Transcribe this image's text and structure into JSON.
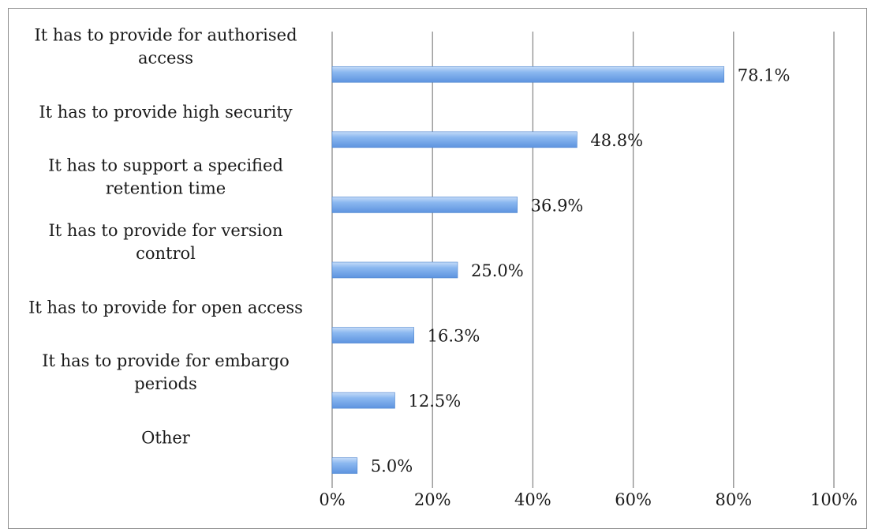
{
  "chart_data": {
    "type": "bar",
    "orientation": "horizontal",
    "title": "",
    "xlabel": "",
    "ylabel": "",
    "xlim": [
      0,
      100
    ],
    "grid": true,
    "categories": [
      [
        "It has to provide for authorised",
        "access"
      ],
      [
        "It has to provide high security"
      ],
      [
        "It has to support a specified",
        "retention time"
      ],
      [
        "It has to provide for version",
        "control"
      ],
      [
        "It has to provide for open access"
      ],
      [
        "It has to provide for embargo",
        "periods"
      ],
      [
        "Other"
      ]
    ],
    "values": [
      78.1,
      48.8,
      36.9,
      25.0,
      16.3,
      12.5,
      5.0
    ],
    "data_labels": [
      "78.1%",
      "48.8%",
      "36.9%",
      "25.0%",
      "16.3%",
      "12.5%",
      "5.0%"
    ],
    "ticks": [
      "0%",
      "20%",
      "40%",
      "60%",
      "80%",
      "100%"
    ],
    "colors": {
      "bar": "#78aaeb",
      "bar_edge": "#4f86cf",
      "grid": "#8c8c8c"
    }
  }
}
